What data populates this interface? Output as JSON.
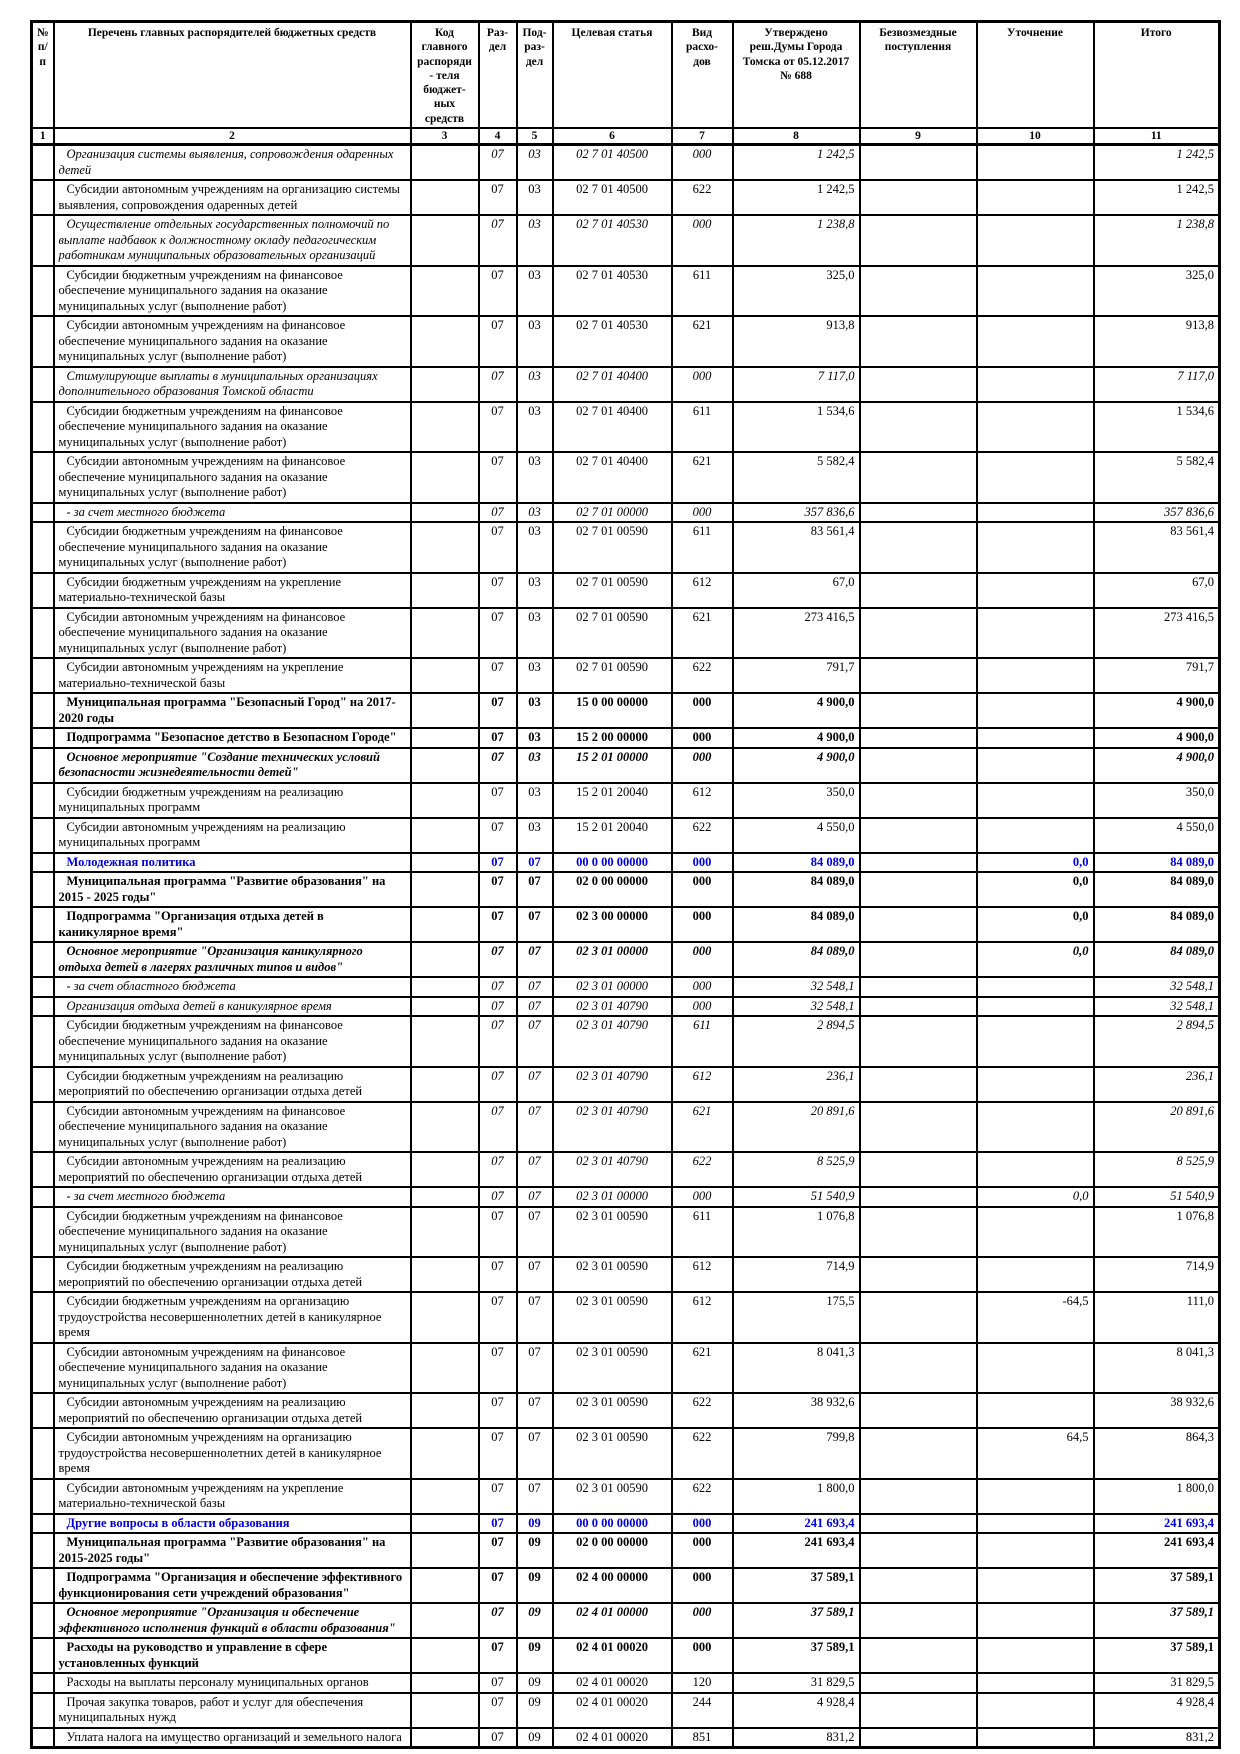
{
  "header": {
    "num": "№ п/п",
    "name": "Перечень главных распорядителей бюджетных средств",
    "code": "Код главного распоряди- теля бюджет- ных средств",
    "razdel": "Раз- дел",
    "podrazdel": "Под- раз- дел",
    "target": "Целевая статья",
    "vid": "Вид расхо- дов",
    "approved": "Утверждено реш.Думы Города Томска от 05.12.2017 № 688",
    "gratuitous": "Безвозмездные поступления",
    "clarification": "Уточнение",
    "total": "Итого"
  },
  "col_numbers": [
    "1",
    "2",
    "3",
    "4",
    "5",
    "6",
    "7",
    "8",
    "9",
    "10",
    "11"
  ],
  "accent_blue": "#0000d6",
  "rows": [
    {
      "d": "Организация системы выявления, сопровождения одаренных детей",
      "rz": "07",
      "pr": "03",
      "cs": "02 7 01 40500",
      "vr": "000",
      "a": "1 242,5",
      "z": "",
      "u": "",
      "t": "1 242,5",
      "s": "i"
    },
    {
      "d": "Субсидии автономным учреждениям на организацию системы выявления, сопровождения одаренных детей",
      "rz": "07",
      "pr": "03",
      "cs": "02 7 01 40500",
      "vr": "622",
      "a": "1 242,5",
      "z": "",
      "u": "",
      "t": "1 242,5",
      "s": ""
    },
    {
      "d": "Осуществление отдельных государственных полномочий по выплате надбавок к должностному окладу педагогическим работникам муниципальных образовательных организаций",
      "rz": "07",
      "pr": "03",
      "cs": "02 7 01 40530",
      "vr": "000",
      "a": "1 238,8",
      "z": "",
      "u": "",
      "t": "1 238,8",
      "s": "i"
    },
    {
      "d": "Субсидии бюджетным учреждениям на финансовое обеспечение муниципального задания на оказание муниципальных услуг (выполнение работ)",
      "rz": "07",
      "pr": "03",
      "cs": "02 7 01 40530",
      "vr": "611",
      "a": "325,0",
      "z": "",
      "u": "",
      "t": "325,0",
      "s": ""
    },
    {
      "d": "Субсидии автономным учреждениям на финансовое обеспечение муниципального задания на оказание муниципальных услуг (выполнение работ)",
      "rz": "07",
      "pr": "03",
      "cs": "02 7 01 40530",
      "vr": "621",
      "a": "913,8",
      "z": "",
      "u": "",
      "t": "913,8",
      "s": ""
    },
    {
      "d": "Стимулирующие выплаты в муниципальных организациях дополнительного образования Томской области",
      "rz": "07",
      "pr": "03",
      "cs": "02 7 01 40400",
      "vr": "000",
      "a": "7 117,0",
      "z": "",
      "u": "",
      "t": "7 117,0",
      "s": "i"
    },
    {
      "d": "Субсидии бюджетным учреждениям на финансовое обеспечение муниципального задания на оказание муниципальных услуг (выполнение работ)",
      "rz": "07",
      "pr": "03",
      "cs": "02 7 01 40400",
      "vr": "611",
      "a": "1 534,6",
      "z": "",
      "u": "",
      "t": "1 534,6",
      "s": ""
    },
    {
      "d": "Субсидии автономным учреждениям на финансовое обеспечение муниципального задания на оказание муниципальных услуг (выполнение работ)",
      "rz": "07",
      "pr": "03",
      "cs": "02 7 01 40400",
      "vr": "621",
      "a": "5 582,4",
      "z": "",
      "u": "",
      "t": "5 582,4",
      "s": ""
    },
    {
      "d": "- за счет местного бюджета",
      "rz": "07",
      "pr": "03",
      "cs": "02 7 01 00000",
      "vr": "000",
      "a": "357 836,6",
      "z": "",
      "u": "",
      "t": "357 836,6",
      "s": "i"
    },
    {
      "d": "Субсидии бюджетным учреждениям на финансовое обеспечение муниципального задания на оказание муниципальных услуг (выполнение работ)",
      "rz": "07",
      "pr": "03",
      "cs": "02 7 01 00590",
      "vr": "611",
      "a": "83 561,4",
      "z": "",
      "u": "",
      "t": "83 561,4",
      "s": ""
    },
    {
      "d": "Субсидии бюджетным учреждениям на укрепление материально-технической базы",
      "rz": "07",
      "pr": "03",
      "cs": "02 7 01 00590",
      "vr": "612",
      "a": "67,0",
      "z": "",
      "u": "",
      "t": "67,0",
      "s": ""
    },
    {
      "d": "Субсидии автономным учреждениям на финансовое обеспечение муниципального задания на оказание муниципальных услуг (выполнение работ)",
      "rz": "07",
      "pr": "03",
      "cs": "02 7 01 00590",
      "vr": "621",
      "a": "273 416,5",
      "z": "",
      "u": "",
      "t": "273 416,5",
      "s": ""
    },
    {
      "d": "Субсидии автономным учреждениям на укрепление материально-технической базы",
      "rz": "07",
      "pr": "03",
      "cs": "02 7 01 00590",
      "vr": "622",
      "a": "791,7",
      "z": "",
      "u": "",
      "t": "791,7",
      "s": ""
    },
    {
      "d": "Муниципальная программа \"Безопасный Город\" на 2017-2020 годы",
      "rz": "07",
      "pr": "03",
      "cs": "15 0 00 00000",
      "vr": "000",
      "a": "4 900,0",
      "z": "",
      "u": "",
      "t": "4 900,0",
      "s": "b"
    },
    {
      "d": "Подпрограмма \"Безопасное детство в Безопасном Городе\"",
      "rz": "07",
      "pr": "03",
      "cs": "15 2 00 00000",
      "vr": "000",
      "a": "4 900,0",
      "z": "",
      "u": "",
      "t": "4 900,0",
      "s": "b"
    },
    {
      "d": "Основное мероприятие \"Создание технических условий безопасности жизнедеятельности детей\"",
      "rz": "07",
      "pr": "03",
      "cs": "15 2 01 00000",
      "vr": "000",
      "a": "4 900,0",
      "z": "",
      "u": "",
      "t": "4 900,0",
      "s": "bi"
    },
    {
      "d": "Субсидии бюджетным учреждениям на реализацию муниципальных программ",
      "rz": "07",
      "pr": "03",
      "cs": "15 2 01 20040",
      "vr": "612",
      "a": "350,0",
      "z": "",
      "u": "",
      "t": "350,0",
      "s": ""
    },
    {
      "d": "Субсидии автономным учреждениям на реализацию муниципальных программ",
      "rz": "07",
      "pr": "03",
      "cs": "15 2 01 20040",
      "vr": "622",
      "a": "4 550,0",
      "z": "",
      "u": "",
      "t": "4 550,0",
      "s": ""
    },
    {
      "d": "Молодежная политика",
      "rz": "07",
      "pr": "07",
      "cs": "00 0 00 00000",
      "vr": "000",
      "a": "84 089,0",
      "z": "",
      "u": "0,0",
      "t": "84 089,0",
      "s": "blue"
    },
    {
      "d": "Муниципальная программа \"Развитие образования\" на 2015 - 2025 годы\"",
      "rz": "07",
      "pr": "07",
      "cs": "02 0 00 00000",
      "vr": "000",
      "a": "84 089,0",
      "z": "",
      "u": "0,0",
      "t": "84 089,0",
      "s": "b"
    },
    {
      "d": "Подпрограмма \"Организация отдыха детей в каникулярное время\"",
      "rz": "07",
      "pr": "07",
      "cs": "02 3 00 00000",
      "vr": "000",
      "a": "84 089,0",
      "z": "",
      "u": "0,0",
      "t": "84 089,0",
      "s": "b"
    },
    {
      "d": "Основное мероприятие \"Организация каникулярного отдыха детей в лагерях различных типов и видов\"",
      "rz": "07",
      "pr": "07",
      "cs": "02 3 01 00000",
      "vr": "000",
      "a": "84 089,0",
      "z": "",
      "u": "0,0",
      "t": "84 089,0",
      "s": "bi"
    },
    {
      "d": "- за счет областного бюджета",
      "rz": "07",
      "pr": "07",
      "cs": "02 3 01 00000",
      "vr": "000",
      "a": "32 548,1",
      "z": "",
      "u": "",
      "t": "32 548,1",
      "s": "i"
    },
    {
      "d": "Организация отдыха детей в каникулярное время",
      "rz": "07",
      "pr": "07",
      "cs": "02 3 01 40790",
      "vr": "000",
      "a": "32 548,1",
      "z": "",
      "u": "",
      "t": "32 548,1",
      "s": "i"
    },
    {
      "d": "Субсидии бюджетным учреждениям на финансовое обеспечение муниципального задания на оказание муниципальных услуг (выполнение работ)",
      "rz": "07",
      "pr": "07",
      "cs": "02 3 01 40790",
      "vr": "611",
      "a": "2 894,5",
      "z": "",
      "u": "",
      "t": "2 894,5",
      "s": "ni"
    },
    {
      "d": "Субсидии бюджетным учреждениям на реализацию мероприятий по обеспечению организации отдыха детей",
      "rz": "07",
      "pr": "07",
      "cs": "02 3 01 40790",
      "vr": "612",
      "a": "236,1",
      "z": "",
      "u": "",
      "t": "236,1",
      "s": "ni"
    },
    {
      "d": "Субсидии автономным учреждениям на финансовое обеспечение муниципального задания на оказание муниципальных услуг (выполнение работ)",
      "rz": "07",
      "pr": "07",
      "cs": "02 3 01 40790",
      "vr": "621",
      "a": "20 891,6",
      "z": "",
      "u": "",
      "t": "20 891,6",
      "s": "ni"
    },
    {
      "d": "Субсидии автономным учреждениям на реализацию мероприятий по обеспечению организации отдыха детей",
      "rz": "07",
      "pr": "07",
      "cs": "02 3 01 40790",
      "vr": "622",
      "a": "8 525,9",
      "z": "",
      "u": "",
      "t": "8 525,9",
      "s": "ni"
    },
    {
      "d": "- за счет местного бюджета",
      "rz": "07",
      "pr": "07",
      "cs": "02 3 01 00000",
      "vr": "000",
      "a": "51 540,9",
      "z": "",
      "u": "0,0",
      "t": "51 540,9",
      "s": "i"
    },
    {
      "d": "Субсидии бюджетным учреждениям на финансовое обеспечение муниципального задания на оказание муниципальных услуг (выполнение работ)",
      "rz": "07",
      "pr": "07",
      "cs": "02 3 01 00590",
      "vr": "611",
      "a": "1 076,8",
      "z": "",
      "u": "",
      "t": "1 076,8",
      "s": ""
    },
    {
      "d": "Субсидии бюджетным учреждениям на реализацию мероприятий по обеспечению организации отдыха детей",
      "rz": "07",
      "pr": "07",
      "cs": "02 3 01 00590",
      "vr": "612",
      "a": "714,9",
      "z": "",
      "u": "",
      "t": "714,9",
      "s": ""
    },
    {
      "d": "Субсидии бюджетным учреждениям на организацию трудоустройства несовершеннолетних детей в каникулярное время",
      "rz": "07",
      "pr": "07",
      "cs": "02 3 01 00590",
      "vr": "612",
      "a": "175,5",
      "z": "",
      "u": "-64,5",
      "t": "111,0",
      "s": ""
    },
    {
      "d": "Субсидии автономным учреждениям на финансовое обеспечение муниципального задания на оказание муниципальных услуг (выполнение работ)",
      "rz": "07",
      "pr": "07",
      "cs": "02 3 01 00590",
      "vr": "621",
      "a": "8 041,3",
      "z": "",
      "u": "",
      "t": "8 041,3",
      "s": ""
    },
    {
      "d": "Субсидии автономным учреждениям на реализацию мероприятий по обеспечению организации отдыха детей",
      "rz": "07",
      "pr": "07",
      "cs": "02 3 01 00590",
      "vr": "622",
      "a": "38 932,6",
      "z": "",
      "u": "",
      "t": "38 932,6",
      "s": ""
    },
    {
      "d": "Субсидии автономным учреждениям на организацию трудоустройства несовершеннолетних детей в каникулярное время",
      "rz": "07",
      "pr": "07",
      "cs": "02 3 01 00590",
      "vr": "622",
      "a": "799,8",
      "z": "",
      "u": "64,5",
      "t": "864,3",
      "s": ""
    },
    {
      "d": "Субсидии автономным учреждениям на укрепление материально-технической базы",
      "rz": "07",
      "pr": "07",
      "cs": "02 3 01 00590",
      "vr": "622",
      "a": "1 800,0",
      "z": "",
      "u": "",
      "t": "1 800,0",
      "s": ""
    },
    {
      "d": "Другие вопросы в области образования",
      "rz": "07",
      "pr": "09",
      "cs": "00 0 00 00000",
      "vr": "000",
      "a": "241 693,4",
      "z": "",
      "u": "",
      "t": "241 693,4",
      "s": "blue"
    },
    {
      "d": "Муниципальная программа \"Развитие образования\" на 2015-2025 годы\"",
      "rz": "07",
      "pr": "09",
      "cs": "02 0 00 00000",
      "vr": "000",
      "a": "241 693,4",
      "z": "",
      "u": "",
      "t": "241 693,4",
      "s": "b"
    },
    {
      "d": "Подпрограмма \"Организация и обеспечение эффективного функционирования сети учреждений образования\"",
      "rz": "07",
      "pr": "09",
      "cs": "02 4 00 00000",
      "vr": "000",
      "a": "37 589,1",
      "z": "",
      "u": "",
      "t": "37 589,1",
      "s": "b"
    },
    {
      "d": "Основное мероприятие \"Организация и обеспечение эффективного исполнения функций в области образования\"",
      "rz": "07",
      "pr": "09",
      "cs": "02 4 01 00000",
      "vr": "000",
      "a": "37 589,1",
      "z": "",
      "u": "",
      "t": "37 589,1",
      "s": "bi"
    },
    {
      "d": "Расходы на руководство и управление в сфере установленных функций",
      "rz": "07",
      "pr": "09",
      "cs": "02 4 01 00020",
      "vr": "000",
      "a": "37 589,1",
      "z": "",
      "u": "",
      "t": "37 589,1",
      "s": "b"
    },
    {
      "d": "Расходы на выплаты персоналу муниципальных органов",
      "rz": "07",
      "pr": "09",
      "cs": "02 4 01 00020",
      "vr": "120",
      "a": "31 829,5",
      "z": "",
      "u": "",
      "t": "31 829,5",
      "s": ""
    },
    {
      "d": "Прочая закупка товаров, работ и услуг для обеспечения муниципальных нужд",
      "rz": "07",
      "pr": "09",
      "cs": "02 4 01 00020",
      "vr": "244",
      "a": "4 928,4",
      "z": "",
      "u": "",
      "t": "4 928,4",
      "s": ""
    },
    {
      "d": "Уплата налога на имущество организаций и земельного налога",
      "rz": "07",
      "pr": "09",
      "cs": "02 4 01 00020",
      "vr": "851",
      "a": "831,2",
      "z": "",
      "u": "",
      "t": "831,2",
      "s": ""
    }
  ]
}
